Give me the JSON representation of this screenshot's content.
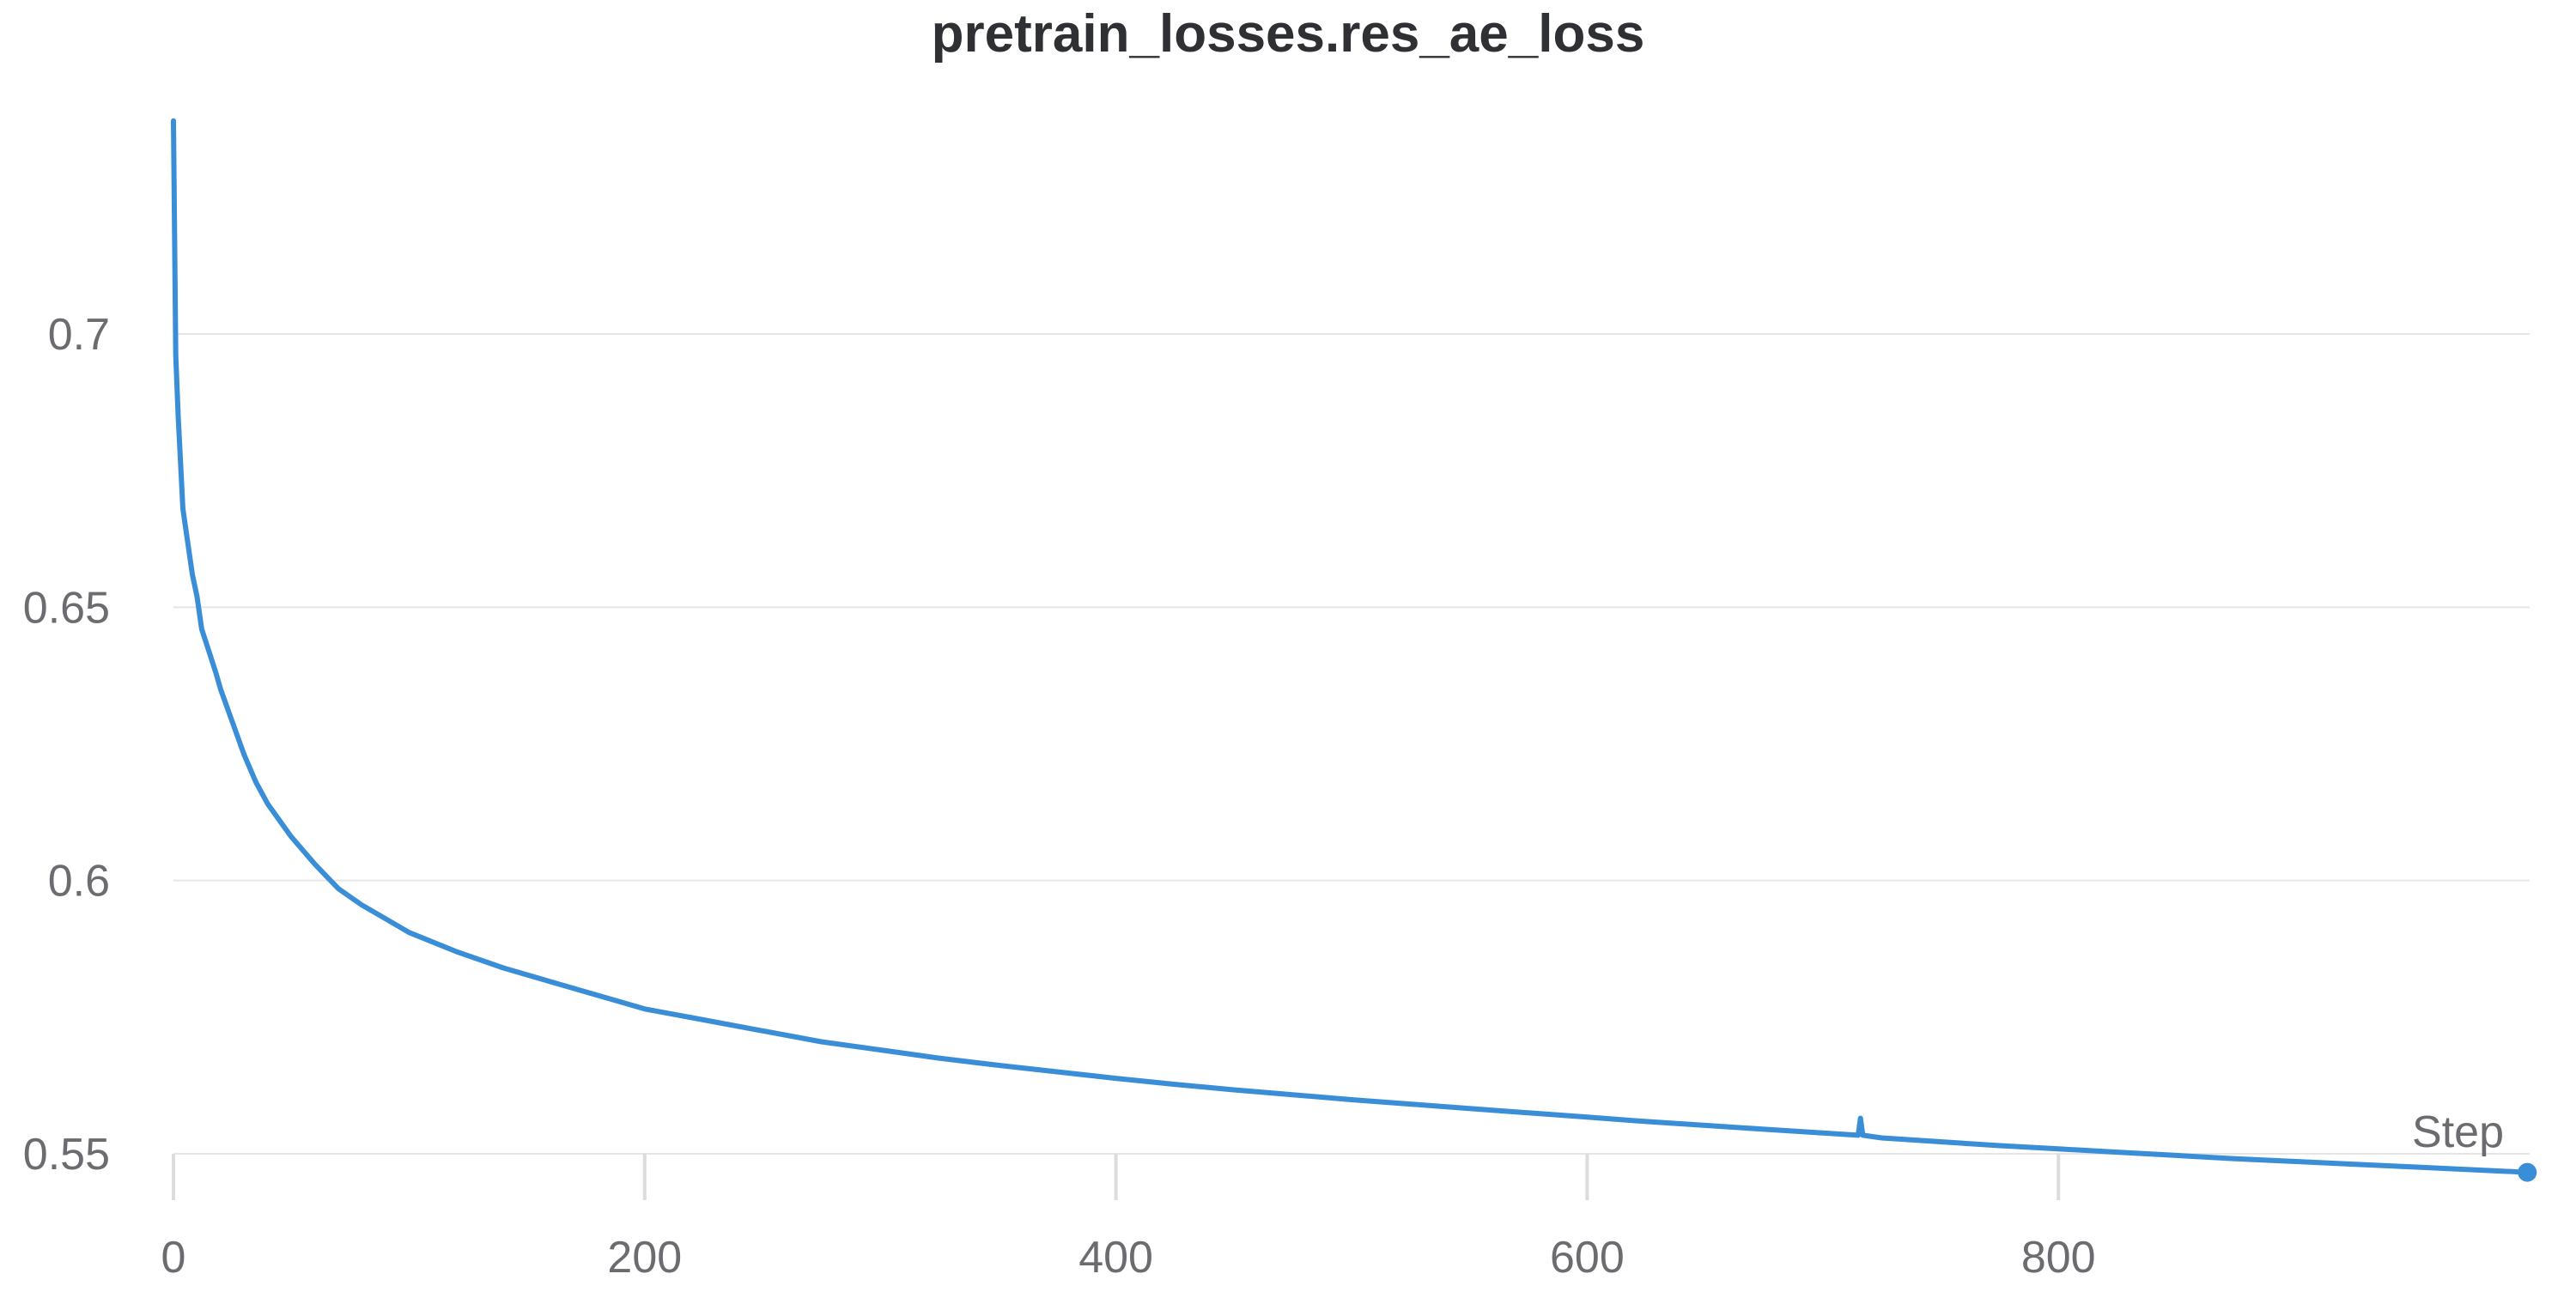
{
  "chart_data": {
    "type": "line",
    "title": "pretrain_losses.res_ae_loss",
    "xlabel": "Step",
    "ylabel": "",
    "xlim": [
      0,
      1000
    ],
    "ylim": [
      0.545,
      0.739
    ],
    "x_ticks": [
      0,
      200,
      400,
      600,
      800
    ],
    "y_ticks": [
      0.55,
      0.6,
      0.65,
      0.7
    ],
    "x_tick_labels": [
      "0",
      "200",
      "400",
      "600",
      "800"
    ],
    "y_tick_labels": [
      "0.55",
      "0.6",
      "0.65",
      "0.7"
    ],
    "grid": true,
    "legend": "none",
    "series": [
      {
        "color": "#3a8ed8",
        "x": [
          0,
          1,
          2,
          4,
          6,
          8,
          10,
          12,
          15,
          18,
          20,
          25,
          30,
          35,
          40,
          45,
          50,
          60,
          70,
          80,
          90,
          100,
          120,
          140,
          160,
          180,
          200,
          225,
          250,
          275,
          300,
          325,
          350,
          375,
          400,
          425,
          450,
          475,
          500,
          525,
          550,
          575,
          600,
          625,
          650,
          675,
          700,
          715,
          716,
          717,
          725,
          750,
          775,
          800,
          825,
          850,
          875,
          900,
          925,
          950,
          975,
          999
        ],
        "y": [
          0.739,
          0.696,
          0.685,
          0.668,
          0.662,
          0.656,
          0.652,
          0.646,
          0.642,
          0.638,
          0.635,
          0.629,
          0.623,
          0.618,
          0.614,
          0.611,
          0.608,
          0.603,
          0.5985,
          0.5955,
          0.593,
          0.5905,
          0.587,
          0.584,
          0.5815,
          0.579,
          0.5765,
          0.5745,
          0.5725,
          0.5705,
          0.569,
          0.5675,
          0.5662,
          0.565,
          0.5638,
          0.5627,
          0.5617,
          0.5608,
          0.5599,
          0.5591,
          0.5583,
          0.5575,
          0.5567,
          0.5559,
          0.5552,
          0.5545,
          0.5538,
          0.5534,
          0.5565,
          0.5534,
          0.5529,
          0.5522,
          0.5515,
          0.5509,
          0.5503,
          0.5497,
          0.5491,
          0.5486,
          0.5481,
          0.5476,
          0.5471,
          0.5466
        ]
      }
    ]
  }
}
